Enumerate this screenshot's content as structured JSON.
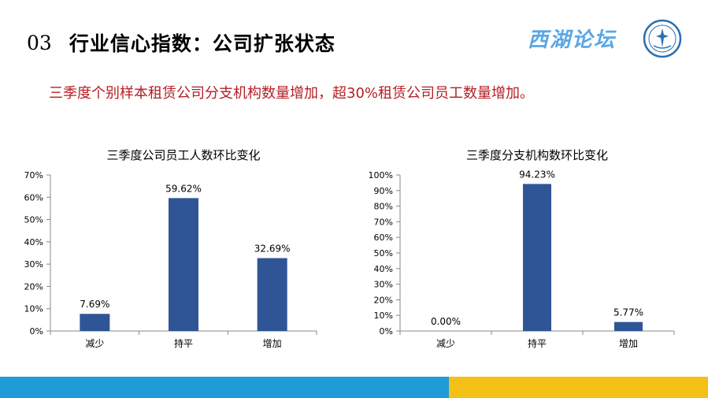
{
  "slide": {
    "number": "03",
    "title": "行业信心指数：公司扩张状态",
    "subtitle": "三季度个别样本租赁公司分支机构数量增加，超30%租赁公司员工数量增加。",
    "brand": "西湖论坛",
    "colors": {
      "bar": "#2f5597",
      "subtitle": "#b41e24",
      "footer_left": "#1f9bd7",
      "footer_right": "#f5c016",
      "brand": "#5aa7e6"
    }
  },
  "chart_data": [
    {
      "type": "bar",
      "title": "三季度公司员工人数环比变化",
      "categories": [
        "减少",
        "持平",
        "增加"
      ],
      "values": [
        7.69,
        59.62,
        32.69
      ],
      "value_labels": [
        "7.69%",
        "59.62%",
        "32.69%"
      ],
      "yticks": [
        "0%",
        "10%",
        "20%",
        "30%",
        "40%",
        "50%",
        "60%",
        "70%"
      ],
      "ylim": [
        0,
        70
      ],
      "grid": false,
      "legend": "none"
    },
    {
      "type": "bar",
      "title": "三季度分支机构数环比变化",
      "categories": [
        "减少",
        "持平",
        "增加"
      ],
      "values": [
        0.0,
        94.23,
        5.77
      ],
      "value_labels": [
        "0.00%",
        "94.23%",
        "5.77%"
      ],
      "yticks": [
        "0%",
        "10%",
        "20%",
        "30%",
        "40%",
        "50%",
        "60%",
        "70%",
        "80%",
        "90%",
        "100%"
      ],
      "ylim": [
        0,
        100
      ],
      "grid": false,
      "legend": "none"
    }
  ]
}
